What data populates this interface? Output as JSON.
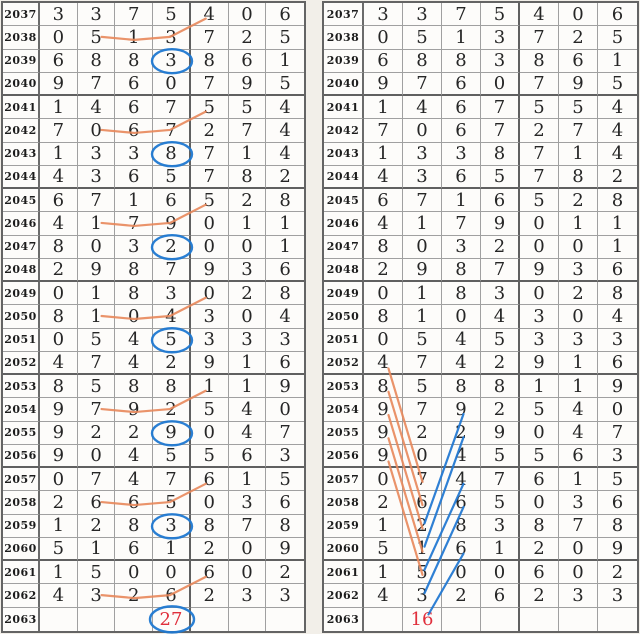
{
  "chart_data": {
    "type": "table",
    "row_header": "year",
    "rows": [
      {
        "y": "2037",
        "d": [
          "3",
          "3",
          "7",
          "5",
          "4",
          "0",
          "6"
        ]
      },
      {
        "y": "2038",
        "d": [
          "0",
          "5",
          "1",
          "3",
          "7",
          "2",
          "5"
        ]
      },
      {
        "y": "2039",
        "d": [
          "6",
          "8",
          "8",
          "3",
          "8",
          "6",
          "1"
        ]
      },
      {
        "y": "2040",
        "d": [
          "9",
          "7",
          "6",
          "0",
          "7",
          "9",
          "5"
        ]
      },
      {
        "y": "2041",
        "d": [
          "1",
          "4",
          "6",
          "7",
          "5",
          "5",
          "4"
        ]
      },
      {
        "y": "2042",
        "d": [
          "7",
          "0",
          "6",
          "7",
          "2",
          "7",
          "4"
        ]
      },
      {
        "y": "2043",
        "d": [
          "1",
          "3",
          "3",
          "8",
          "7",
          "1",
          "4"
        ]
      },
      {
        "y": "2044",
        "d": [
          "4",
          "3",
          "6",
          "5",
          "7",
          "8",
          "2"
        ]
      },
      {
        "y": "2045",
        "d": [
          "6",
          "7",
          "1",
          "6",
          "5",
          "2",
          "8"
        ]
      },
      {
        "y": "2046",
        "d": [
          "4",
          "1",
          "7",
          "9",
          "0",
          "1",
          "1"
        ]
      },
      {
        "y": "2047",
        "d": [
          "8",
          "0",
          "3",
          "2",
          "0",
          "0",
          "1"
        ]
      },
      {
        "y": "2048",
        "d": [
          "2",
          "9",
          "8",
          "7",
          "9",
          "3",
          "6"
        ]
      },
      {
        "y": "2049",
        "d": [
          "0",
          "1",
          "8",
          "3",
          "0",
          "2",
          "8"
        ]
      },
      {
        "y": "2050",
        "d": [
          "8",
          "1",
          "0",
          "4",
          "3",
          "0",
          "4"
        ]
      },
      {
        "y": "2051",
        "d": [
          "0",
          "5",
          "4",
          "5",
          "3",
          "3",
          "3"
        ]
      },
      {
        "y": "2052",
        "d": [
          "4",
          "7",
          "4",
          "2",
          "9",
          "1",
          "6"
        ]
      },
      {
        "y": "2053",
        "d": [
          "8",
          "5",
          "8",
          "8",
          "1",
          "1",
          "9"
        ]
      },
      {
        "y": "2054",
        "d": [
          "9",
          "7",
          "9",
          "2",
          "5",
          "4",
          "0"
        ]
      },
      {
        "y": "2055",
        "d": [
          "9",
          "2",
          "2",
          "9",
          "0",
          "4",
          "7"
        ]
      },
      {
        "y": "2056",
        "d": [
          "9",
          "0",
          "4",
          "5",
          "5",
          "6",
          "3"
        ]
      },
      {
        "y": "2057",
        "d": [
          "0",
          "7",
          "4",
          "7",
          "6",
          "1",
          "5"
        ]
      },
      {
        "y": "2058",
        "d": [
          "2",
          "6",
          "6",
          "5",
          "0",
          "3",
          "6"
        ]
      },
      {
        "y": "2059",
        "d": [
          "1",
          "2",
          "8",
          "3",
          "8",
          "7",
          "8"
        ]
      },
      {
        "y": "2060",
        "d": [
          "5",
          "1",
          "6",
          "1",
          "2",
          "0",
          "9"
        ]
      },
      {
        "y": "2061",
        "d": [
          "1",
          "5",
          "0",
          "0",
          "6",
          "0",
          "2"
        ]
      },
      {
        "y": "2062",
        "d": [
          "4",
          "3",
          "2",
          "6",
          "2",
          "3",
          "3"
        ]
      },
      {
        "y": "2063",
        "d": [
          "",
          "",
          "",
          "",
          "",
          "",
          ""
        ]
      }
    ],
    "left_result": {
      "year": "2063",
      "col": 4,
      "value": "27",
      "circled": true
    },
    "right_result": {
      "year": "2063",
      "col": 2,
      "value": "16",
      "circled": false
    },
    "annotations": {
      "left_check_rows": [
        "2038",
        "2042",
        "2046",
        "2050",
        "2054",
        "2058",
        "2062"
      ],
      "left_check_shape": "horizontal col2-col4 then diagonal up to col5 of previous row",
      "left_circle_rows": [
        "2039",
        "2043",
        "2047",
        "2051",
        "2055",
        "2059",
        "2063"
      ],
      "left_circle_col": 4,
      "right_down_lines": [
        [
          "2052",
          "2057"
        ],
        [
          "2053",
          "2058"
        ],
        [
          "2054",
          "2059"
        ],
        [
          "2055",
          "2060"
        ],
        [
          "2056",
          "2061"
        ]
      ],
      "right_down_cols": [
        1,
        2
      ],
      "right_up_lines": [
        [
          "2059",
          "2054"
        ],
        [
          "2060",
          "2055"
        ],
        [
          "2061",
          "2057"
        ],
        [
          "2062",
          "2058"
        ],
        [
          "2063",
          "2060"
        ]
      ],
      "right_up_cols": [
        2,
        3
      ]
    }
  },
  "colors": {
    "line_orange": "#e8875a",
    "line_blue": "#2479d2",
    "circle_blue": "#1f78d1",
    "result_red": "#e02f3c",
    "grid": "#a0a0a0",
    "grid_heavy": "#646464",
    "digit": "#262626",
    "cell_bg": "#fdfcfa",
    "page_bg": "#f2efe9"
  }
}
